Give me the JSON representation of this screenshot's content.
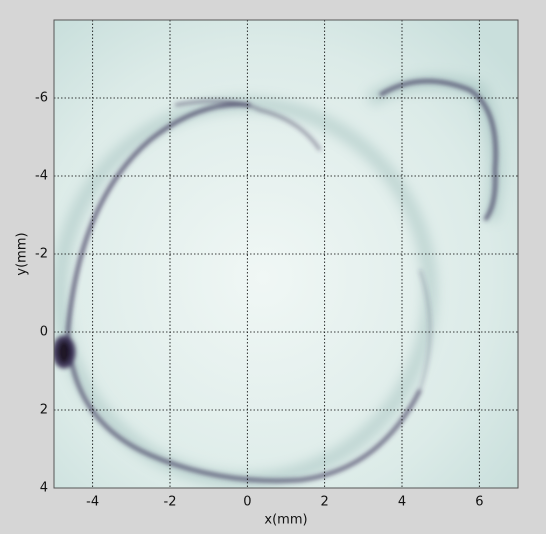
{
  "chart_data": {
    "type": "image",
    "xlabel": "x(mm)",
    "ylabel": "y(mm)",
    "xlim": [
      -5,
      7
    ],
    "xticks": [
      -4,
      -2,
      0,
      2,
      4,
      6
    ],
    "ylim": [
      -8,
      4
    ],
    "yticks": [
      -6,
      -4,
      -2,
      0,
      2,
      4
    ],
    "y_inverted": true,
    "grid": true
  }
}
